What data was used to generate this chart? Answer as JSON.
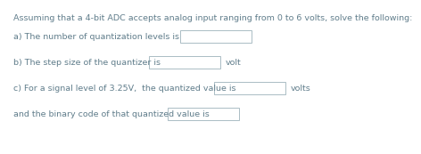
{
  "title_line": "Assuming that a 4-bit ADC accepts analog input ranging from 0 to 6 volts, solve the following:",
  "line_a_text": "a) The number of quantization levels is",
  "line_b_pre": "b) The step size of the quantizer is",
  "line_b_post": "volt",
  "line_c_pre": "c) For a signal level of 3.25V,  the quantized value is",
  "line_c_post": "volts",
  "line_d_pre": "and the binary code of that quantized value is",
  "bg_color": "#ffffff",
  "text_color": "#607d8b",
  "box_face_color": "#ffffff",
  "box_edge_color": "#aabcc4",
  "font_size": 6.8
}
